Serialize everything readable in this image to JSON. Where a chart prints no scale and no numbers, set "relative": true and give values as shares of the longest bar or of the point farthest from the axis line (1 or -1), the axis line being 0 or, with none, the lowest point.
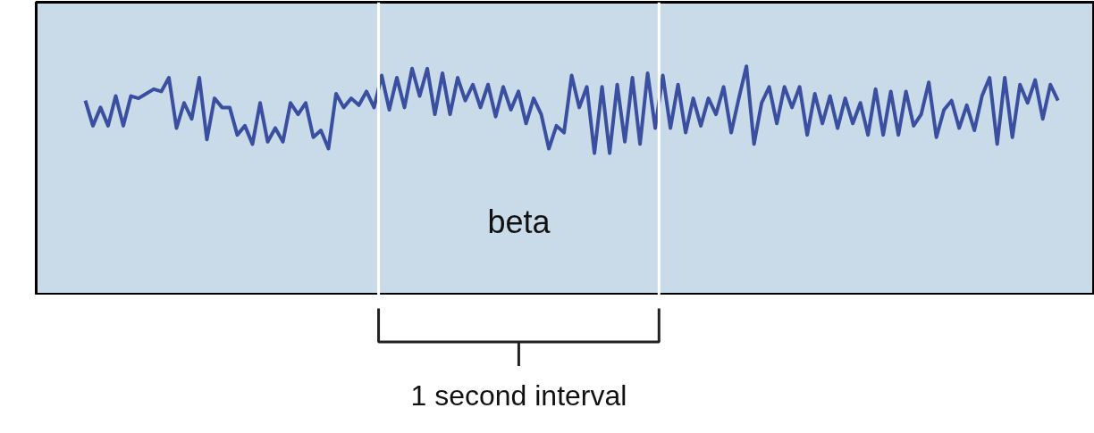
{
  "chart_data": {
    "type": "line",
    "relative": true,
    "line_style": "solid",
    "categories": [
      null,
      null,
      null,
      null,
      null,
      null,
      null,
      null,
      null,
      null,
      null,
      null,
      null,
      null,
      null,
      null,
      null,
      null,
      null,
      null,
      null,
      null,
      null,
      null,
      null,
      null,
      null,
      null,
      null,
      null,
      null,
      null,
      null,
      null,
      null,
      null,
      null,
      null,
      null,
      null,
      null,
      null,
      null,
      null,
      null,
      null,
      null,
      null,
      null,
      null,
      null,
      null,
      null,
      null,
      null,
      null,
      null,
      null,
      null,
      null,
      null,
      null,
      null,
      null,
      null,
      null,
      null,
      null,
      null,
      null,
      null,
      null,
      null,
      null,
      null,
      null,
      null,
      null,
      null,
      null,
      null,
      null,
      null,
      null,
      null,
      null,
      null,
      null,
      null,
      null,
      null,
      null,
      null,
      null,
      null,
      null,
      null,
      null,
      null,
      null,
      null,
      null,
      null,
      null,
      null,
      null,
      null,
      null,
      null,
      null,
      null,
      null,
      null,
      null,
      null,
      null,
      null,
      null,
      null,
      null,
      null,
      null,
      null,
      null,
      null,
      null,
      null,
      null,
      null
    ],
    "annotations": [
      "beta",
      "1 second interval"
    ],
    "series": [
      {
        "color": "#3a4fa0",
        "values": [
          0.85,
          0.74,
          0.82,
          0.74,
          0.87,
          0.74,
          0.87,
          0.86,
          0.88,
          0.9,
          0.89,
          0.95,
          0.73,
          0.84,
          0.77,
          0.95,
          0.68,
          0.86,
          0.82,
          0.82,
          0.7,
          0.74,
          0.66,
          0.84,
          0.67,
          0.73,
          0.67,
          0.84,
          0.79,
          0.84,
          0.69,
          0.72,
          0.64,
          0.88,
          0.82,
          0.86,
          0.83,
          0.89,
          0.82,
          0.96,
          0.81,
          0.95,
          0.82,
          0.99,
          0.87,
          0.99,
          0.79,
          0.97,
          0.79,
          0.95,
          0.85,
          0.92,
          0.82,
          0.92,
          0.78,
          0.91,
          0.81,
          0.89,
          0.75,
          0.86,
          0.79,
          0.64,
          0.74,
          0.71,
          0.96,
          0.82,
          0.91,
          0.62,
          0.91,
          0.62,
          0.92,
          0.67,
          0.95,
          0.66,
          0.97,
          0.73,
          0.96,
          0.73,
          0.92,
          0.71,
          0.86,
          0.74,
          0.86,
          0.79,
          0.91,
          0.71,
          0.86,
          1.0,
          0.66,
          0.84,
          0.91,
          0.75,
          0.91,
          0.82,
          0.91,
          0.7,
          0.88,
          0.75,
          0.87,
          0.73,
          0.86,
          0.75,
          0.84,
          0.7,
          0.9,
          0.7,
          0.89,
          0.7,
          0.89,
          0.74,
          0.79,
          0.93,
          0.69,
          0.81,
          0.85,
          0.73,
          0.83,
          0.72,
          0.87,
          0.95,
          0.66,
          0.95,
          0.69,
          0.92,
          0.84,
          0.94,
          0.77,
          0.92,
          0.85
        ]
      }
    ]
  }
}
